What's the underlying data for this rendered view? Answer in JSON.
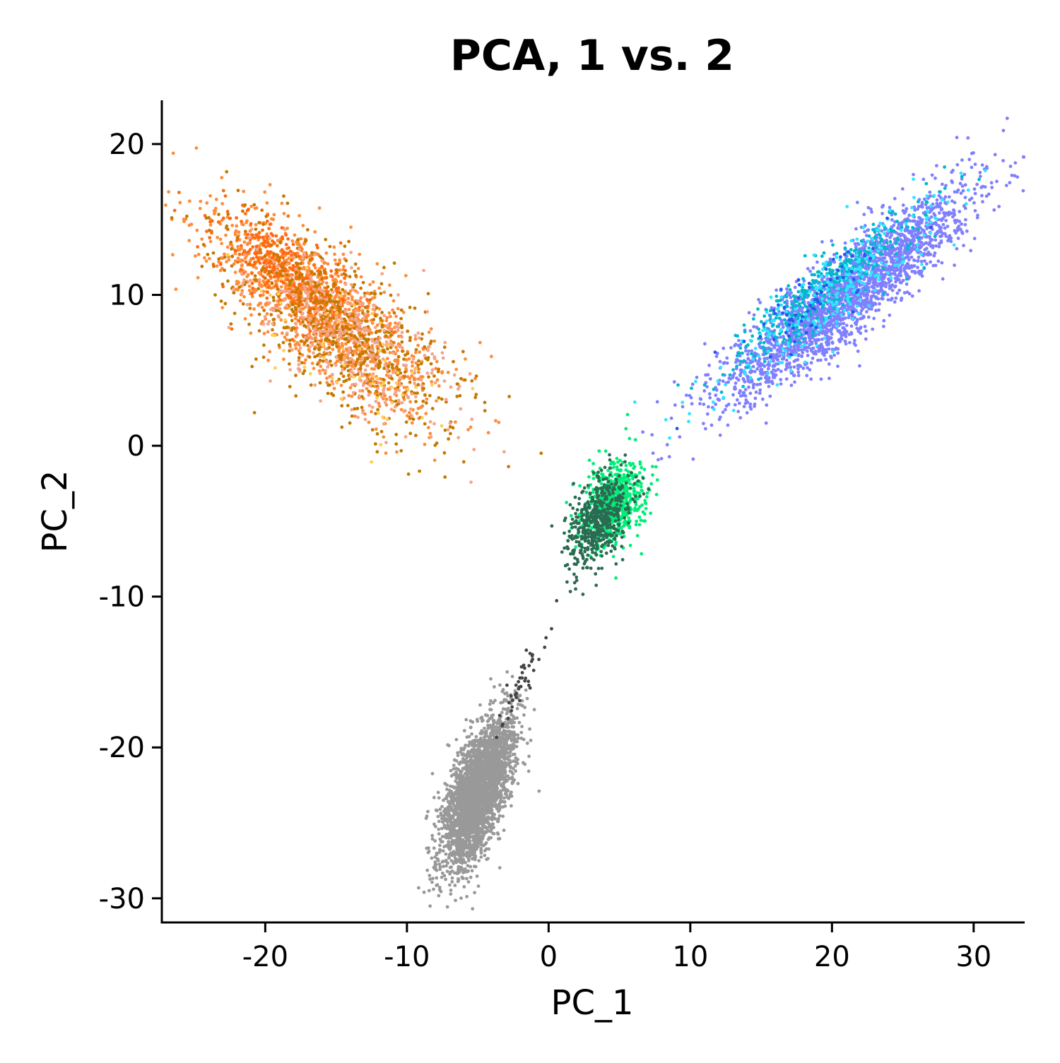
{
  "chart_data": {
    "type": "scatter",
    "title": "PCA, 1 vs. 2",
    "xlabel": "PC_1",
    "ylabel": "PC_2",
    "xlim": [
      -27.3,
      33.6
    ],
    "ylim": [
      -31.6,
      22.9
    ],
    "x_ticks": [
      "-20",
      "-10",
      "0",
      "10",
      "20",
      "30"
    ],
    "y_ticks": [
      "20",
      "10",
      "0",
      "-10",
      "-20",
      "-30"
    ],
    "grid": false,
    "legend": "none",
    "clusters": [
      {
        "color": "#ff8c3a",
        "n": 1300,
        "mean": [
          -16,
          9
        ],
        "axis_angle_deg": -37,
        "sd_major": 4.6,
        "sd_minor": 1.7
      },
      {
        "color": "#ff6a10",
        "n": 350,
        "mean": [
          -18.5,
          11.5
        ],
        "axis_angle_deg": -37,
        "sd_major": 3.0,
        "sd_minor": 1.3
      },
      {
        "color": "#c47a00",
        "n": 650,
        "mean": [
          -14.5,
          7.5
        ],
        "axis_angle_deg": -37,
        "sd_major": 4.8,
        "sd_minor": 2.0
      },
      {
        "color": "#f4a58c",
        "n": 350,
        "mean": [
          -14,
          7
        ],
        "axis_angle_deg": -37,
        "sd_major": 4.5,
        "sd_minor": 1.8
      },
      {
        "color": "#ffcc55",
        "n": 60,
        "mean": [
          -14,
          6
        ],
        "axis_angle_deg": -37,
        "sd_major": 4.5,
        "sd_minor": 1.8
      },
      {
        "color": "#8080ff",
        "n": 2300,
        "mean": [
          21,
          10
        ],
        "axis_angle_deg": 38,
        "sd_major": 5.5,
        "sd_minor": 1.2
      },
      {
        "color": "#00b8cc",
        "n": 380,
        "mean": [
          19.5,
          10.5
        ],
        "axis_angle_deg": 38,
        "sd_major": 4.5,
        "sd_minor": 0.9
      },
      {
        "color": "#2ee6ff",
        "n": 260,
        "mean": [
          20,
          10
        ],
        "axis_angle_deg": 38,
        "sd_major": 5.0,
        "sd_minor": 1.1
      },
      {
        "color": "#2a55ee",
        "n": 70,
        "mean": [
          19,
          10
        ],
        "axis_angle_deg": 38,
        "sd_major": 4.0,
        "sd_minor": 0.9
      },
      {
        "color": "#00ee77",
        "n": 650,
        "mean": [
          4.5,
          -4
        ],
        "axis_angle_deg": 60,
        "sd_major": 1.5,
        "sd_minor": 1.0
      },
      {
        "color": "#2b6b52",
        "n": 500,
        "mean": [
          3.5,
          -5
        ],
        "axis_angle_deg": 60,
        "sd_major": 1.7,
        "sd_minor": 0.9
      },
      {
        "color": "#999999",
        "n": 3000,
        "mean": [
          -5,
          -23
        ],
        "axis_angle_deg": 70,
        "sd_major": 2.6,
        "sd_minor": 0.9
      },
      {
        "color": "#444444",
        "n": 45,
        "mean": [
          -1.8,
          -15.5
        ],
        "axis_angle_deg": 62,
        "sd_major": 2.0,
        "sd_minor": 0.4
      }
    ]
  }
}
